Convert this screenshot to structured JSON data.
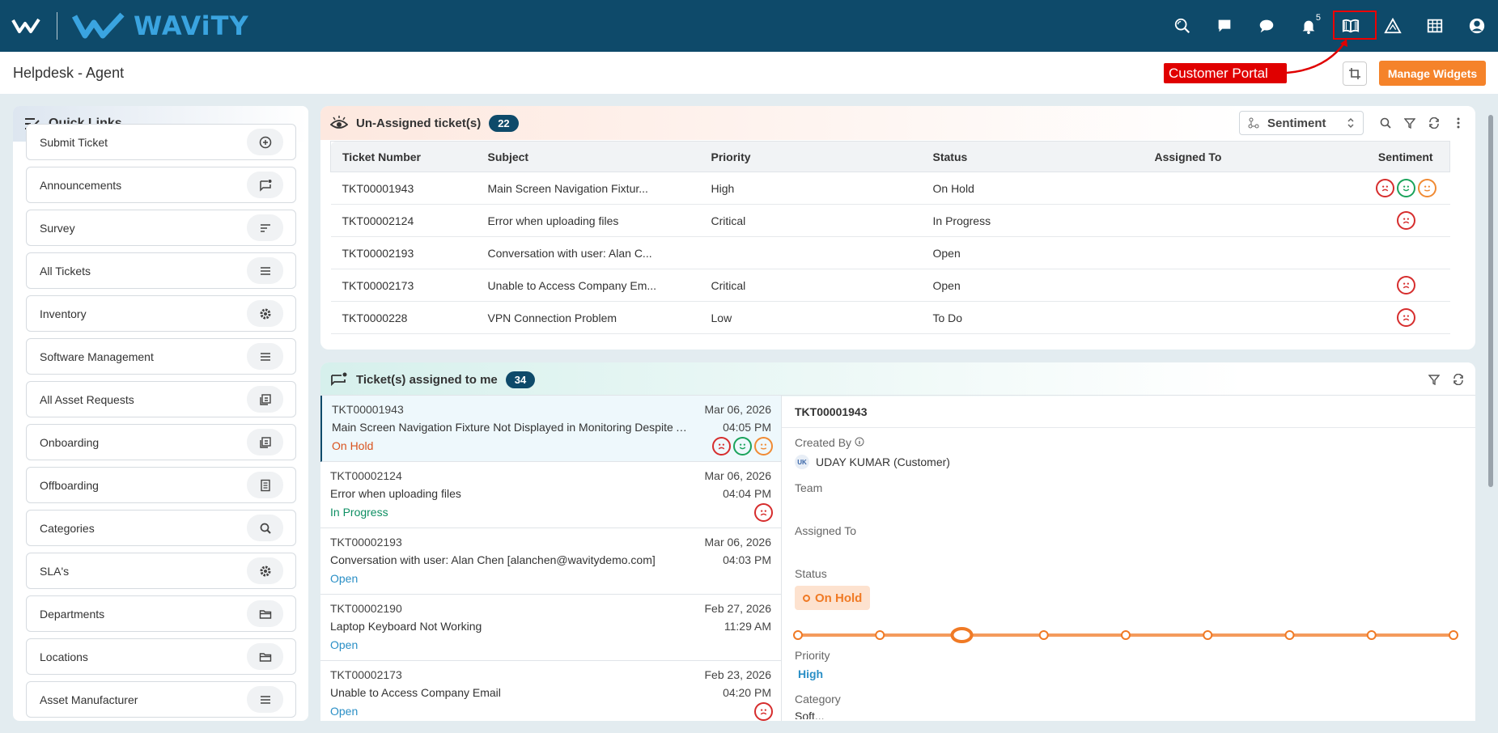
{
  "header": {
    "brand": "WAViTY",
    "notification_count": "5",
    "icons": [
      "search-icon",
      "chat-icon",
      "comment-icon",
      "bell-icon",
      "book-icon",
      "triangle-icon",
      "grid-icon",
      "user-icon"
    ]
  },
  "page": {
    "title": "Helpdesk - Agent",
    "callout": "Customer Portal",
    "manage_widgets": "Manage Widgets"
  },
  "quick_links": {
    "title": "Quick Links",
    "items": [
      {
        "label": "Submit Ticket",
        "icon": "plus-circle-icon"
      },
      {
        "label": "Announcements",
        "icon": "announcement-icon"
      },
      {
        "label": "Survey",
        "icon": "survey-icon"
      },
      {
        "label": "All Tickets",
        "icon": "list-icon"
      },
      {
        "label": "Inventory",
        "icon": "settings-icon"
      },
      {
        "label": "Software Management",
        "icon": "list-icon"
      },
      {
        "label": "All Asset Requests",
        "icon": "asset-icon"
      },
      {
        "label": "Onboarding",
        "icon": "asset-icon"
      },
      {
        "label": "Offboarding",
        "icon": "document-icon"
      },
      {
        "label": "Categories",
        "icon": "search-icon"
      },
      {
        "label": "SLA's",
        "icon": "settings-icon"
      },
      {
        "label": "Departments",
        "icon": "folder-icon"
      },
      {
        "label": "Locations",
        "icon": "folder-icon"
      },
      {
        "label": "Asset Manufacturer",
        "icon": "list-icon"
      }
    ]
  },
  "unassigned": {
    "title": "Un-Assigned ticket(s)",
    "count": "22",
    "sentiment_select": "Sentiment",
    "columns": [
      "Ticket Number",
      "Subject",
      "Priority",
      "Status",
      "Assigned To",
      "Sentiment"
    ],
    "rows": [
      {
        "id": "TKT00001943",
        "subject": "Main Screen Navigation Fixtur...",
        "priority": "High",
        "priority_class": "c-high",
        "status": "On Hold",
        "status_class": "c-hold",
        "assigned": "",
        "sentiment": [
          "neg",
          "pos",
          "neu"
        ]
      },
      {
        "id": "TKT00002124",
        "subject": "Error when uploading files",
        "priority": "Critical",
        "priority_class": "c-critical",
        "status": "In Progress",
        "status_class": "c-progress",
        "assigned": "",
        "sentiment": [
          "neg"
        ]
      },
      {
        "id": "TKT00002193",
        "subject": "Conversation with user: Alan C...",
        "priority": "",
        "priority_class": "",
        "status": "Open",
        "status_class": "c-open",
        "assigned": "",
        "sentiment": []
      },
      {
        "id": "TKT00002173",
        "subject": "Unable to Access Company Em...",
        "priority": "Critical",
        "priority_class": "c-critical",
        "status": "Open",
        "status_class": "c-open",
        "assigned": "",
        "sentiment": [
          "neg"
        ]
      },
      {
        "id": "TKT0000228",
        "subject": "VPN Connection Problem",
        "priority": "Low",
        "priority_class": "c-low",
        "status": "To Do",
        "status_class": "c-todo",
        "assigned": "",
        "sentiment": [
          "neg"
        ]
      }
    ]
  },
  "assigned": {
    "title": "Ticket(s) assigned to me",
    "count": "34",
    "items": [
      {
        "id": "TKT00001943",
        "subject": "Main Screen Navigation Fixture Not Displayed in Monitoring Despite A...",
        "status": "On Hold",
        "status_class": "c-hold",
        "date": "Mar 06, 2026",
        "time": "04:05 PM",
        "sentiment": [
          "neg",
          "pos",
          "neu"
        ],
        "selected": true
      },
      {
        "id": "TKT00002124",
        "subject": "Error when uploading files",
        "status": "In Progress",
        "status_class": "c-progress",
        "date": "Mar 06, 2026",
        "time": "04:04 PM",
        "sentiment": [
          "neg"
        ],
        "selected": false
      },
      {
        "id": "TKT00002193",
        "subject": "Conversation with user: Alan Chen [alanchen@wavitydemo.com]",
        "status": "Open",
        "status_class": "c-open",
        "date": "Mar 06, 2026",
        "time": "04:03 PM",
        "sentiment": [],
        "selected": false
      },
      {
        "id": "TKT00002190",
        "subject": "Laptop Keyboard Not Working",
        "status": "Open",
        "status_class": "c-open",
        "date": "Feb 27, 2026",
        "time": "11:29 AM",
        "sentiment": [],
        "selected": false
      },
      {
        "id": "TKT00002173",
        "subject": "Unable to Access Company Email",
        "status": "Open",
        "status_class": "c-open",
        "date": "Feb 23, 2026",
        "time": "04:20 PM",
        "sentiment": [
          "neg"
        ],
        "selected": false
      }
    ]
  },
  "detail": {
    "ticket_id": "TKT00001943",
    "created_by_label": "Created By",
    "creator_initials": "UK",
    "creator": "UDAY KUMAR (Customer)",
    "team_label": "Team",
    "assigned_label": "Assigned To",
    "status_label": "Status",
    "status": "On Hold",
    "status_step": 3,
    "status_steps_total": 9,
    "priority_label": "Priority",
    "priority": "High",
    "category_label": "Category",
    "category_partial": "Soft..."
  },
  "colors": {
    "header_bg": "#0e4a6a",
    "accent_orange": "#f5832a",
    "status_orange": "#f07a25"
  }
}
